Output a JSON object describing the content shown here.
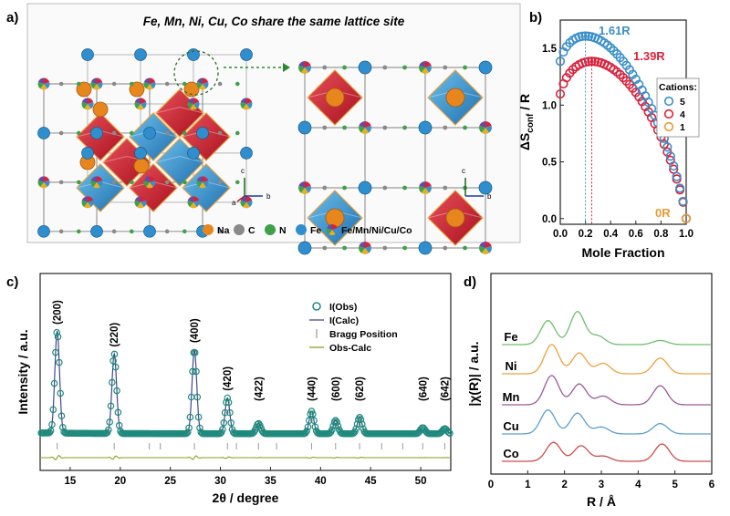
{
  "panel_labels": {
    "a": "a)",
    "b": "b)",
    "c": "c)",
    "d": "d)"
  },
  "panel_a": {
    "title": "Fe, Mn, Ni, Cu, Co share the same lattice site",
    "legend": [
      {
        "label": "Na",
        "color": "#e8861e"
      },
      {
        "label": "C",
        "color": "#8a8a8a"
      },
      {
        "label": "N",
        "color": "#3fa04a"
      },
      {
        "label": "Fe",
        "color": "#2f8fce"
      },
      {
        "label": "Fe/Mn/Ni/Cu/Co",
        "color": "multi"
      }
    ],
    "axis_labels": {
      "c": "c",
      "a": "a",
      "b": "b"
    }
  },
  "chart_data": [
    {
      "id": "b",
      "type": "scatter",
      "xlabel": "Mole Fraction",
      "ylabel": "ΔS",
      "ylabel_sub": "conf",
      "ylabel_tail": " / R",
      "xlim": [
        0,
        1
      ],
      "ylim": [
        -0.05,
        1.75
      ],
      "xticks": [
        "0.0",
        "0.2",
        "0.4",
        "0.6",
        "0.8",
        "1.0"
      ],
      "yticks": [
        "0.0",
        "0.5",
        "1.0",
        "1.5"
      ],
      "legend_title": "Cations:",
      "series": [
        {
          "name": "5",
          "n": 5,
          "color": "#3a8fc8"
        },
        {
          "name": "4",
          "n": 4,
          "color": "#d9213b"
        },
        {
          "name": "1",
          "n": 1,
          "color": "#e89a30"
        }
      ],
      "annotations": [
        {
          "text": "1.61R",
          "color": "#3a8fc8"
        },
        {
          "text": "1.39R",
          "color": "#d9213b"
        },
        {
          "text": "0R",
          "color": "#e89a30"
        }
      ]
    },
    {
      "id": "c",
      "type": "line",
      "xlabel": "2θ / degree",
      "ylabel": "Intensity / a.u.",
      "xlim": [
        12,
        53
      ],
      "xticks": [
        "15",
        "20",
        "25",
        "30",
        "35",
        "40",
        "45",
        "50"
      ],
      "legend": [
        {
          "label": "I(Obs)",
          "color": "#1f8a7d"
        },
        {
          "label": "I(Calc)",
          "color": "#404a8a"
        },
        {
          "label": "Bragg Position",
          "color": "#999999"
        },
        {
          "label": "Obs-Calc",
          "color": "#8aa01e"
        }
      ],
      "peaks": [
        {
          "hkl": "(200)",
          "x": 13.7,
          "h": 1.0
        },
        {
          "hkl": "(220)",
          "x": 19.4,
          "h": 0.78
        },
        {
          "hkl": "(400)",
          "x": 27.4,
          "h": 0.82
        },
        {
          "hkl": "(420)",
          "x": 30.7,
          "h": 0.35
        },
        {
          "hkl": "(422)",
          "x": 33.8,
          "h": 0.1
        },
        {
          "hkl": "(440)",
          "x": 39.1,
          "h": 0.22
        },
        {
          "hkl": "(600)",
          "x": 41.5,
          "h": 0.13
        },
        {
          "hkl": "(620)",
          "x": 43.9,
          "h": 0.16
        },
        {
          "hkl": "(640)",
          "x": 50.2,
          "h": 0.06
        },
        {
          "hkl": "(642)",
          "x": 52.4,
          "h": 0.05
        }
      ],
      "bragg_positions": [
        13.7,
        19.4,
        22.9,
        24.0,
        27.4,
        30.7,
        31.6,
        33.8,
        35.6,
        39.1,
        41.5,
        43.9,
        46.1,
        48.2,
        50.2,
        52.4
      ]
    },
    {
      "id": "d",
      "type": "line",
      "xlabel": "R / Å",
      "ylabel": "|χ(R)| / a.u.",
      "xlim": [
        0,
        6
      ],
      "xticks": [
        "0",
        "1",
        "2",
        "3",
        "4",
        "5",
        "6"
      ],
      "series": [
        {
          "name": "Fe",
          "color": "#6fbe6f",
          "peaks": [
            [
              1.55,
              0.7
            ],
            [
              2.35,
              0.95
            ],
            [
              2.9,
              0.25
            ],
            [
              4.6,
              0.12
            ]
          ]
        },
        {
          "name": "Ni",
          "color": "#f0a040",
          "peaks": [
            [
              1.65,
              0.85
            ],
            [
              2.4,
              0.6
            ],
            [
              3.05,
              0.3
            ],
            [
              4.6,
              0.45
            ]
          ]
        },
        {
          "name": "Mn",
          "color": "#9a5a9a",
          "peaks": [
            [
              1.65,
              0.85
            ],
            [
              2.4,
              0.6
            ],
            [
              3.05,
              0.25
            ],
            [
              4.6,
              0.55
            ]
          ]
        },
        {
          "name": "Cu",
          "color": "#5aa0d0",
          "peaks": [
            [
              1.55,
              0.7
            ],
            [
              2.35,
              0.6
            ],
            [
              3.0,
              0.2
            ],
            [
              4.6,
              0.3
            ]
          ]
        },
        {
          "name": "Co",
          "color": "#d04a4a",
          "peaks": [
            [
              1.7,
              0.55
            ],
            [
              2.45,
              0.45
            ],
            [
              3.05,
              0.15
            ],
            [
              4.65,
              0.5
            ]
          ]
        }
      ]
    }
  ]
}
